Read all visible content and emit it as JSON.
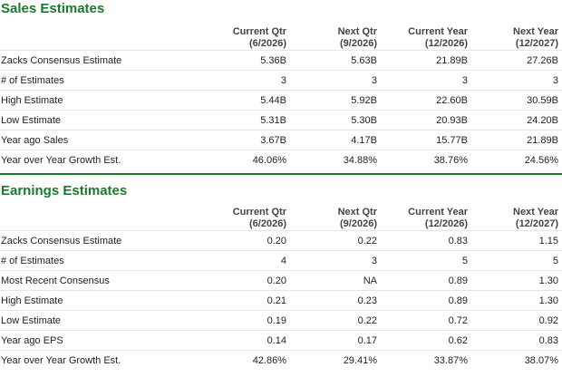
{
  "sales": {
    "title": "Sales Estimates",
    "headers": [
      {
        "line1": "Current Qtr",
        "line2": "(6/2026)"
      },
      {
        "line1": "Next Qtr",
        "line2": "(9/2026)"
      },
      {
        "line1": "Current Year",
        "line2": "(12/2026)"
      },
      {
        "line1": "Next Year",
        "line2": "(12/2027)"
      }
    ],
    "rows": [
      {
        "label": "Zacks Consensus Estimate",
        "values": [
          "5.36B",
          "5.63B",
          "21.89B",
          "27.26B"
        ]
      },
      {
        "label": "# of Estimates",
        "values": [
          "3",
          "3",
          "3",
          "3"
        ]
      },
      {
        "label": "High Estimate",
        "values": [
          "5.44B",
          "5.92B",
          "22.60B",
          "30.59B"
        ]
      },
      {
        "label": "Low Estimate",
        "values": [
          "5.31B",
          "5.30B",
          "20.93B",
          "24.20B"
        ]
      },
      {
        "label": "Year ago Sales",
        "values": [
          "3.67B",
          "4.17B",
          "15.77B",
          "21.89B"
        ]
      },
      {
        "label": "Year over Year Growth Est.",
        "values": [
          "46.06%",
          "34.88%",
          "38.76%",
          "24.56%"
        ]
      }
    ]
  },
  "earnings": {
    "title": "Earnings Estimates",
    "headers": [
      {
        "line1": "Current Qtr",
        "line2": "(6/2026)"
      },
      {
        "line1": "Next Qtr",
        "line2": "(9/2026)"
      },
      {
        "line1": "Current Year",
        "line2": "(12/2026)"
      },
      {
        "line1": "Next Year",
        "line2": "(12/2027)"
      }
    ],
    "rows": [
      {
        "label": "Zacks Consensus Estimate",
        "values": [
          "0.20",
          "0.22",
          "0.83",
          "1.15"
        ]
      },
      {
        "label": "# of Estimates",
        "values": [
          "4",
          "3",
          "5",
          "5"
        ]
      },
      {
        "label": "Most Recent Consensus",
        "values": [
          "0.20",
          "NA",
          "0.89",
          "1.30"
        ]
      },
      {
        "label": "High Estimate",
        "values": [
          "0.21",
          "0.23",
          "0.89",
          "1.30"
        ]
      },
      {
        "label": "Low Estimate",
        "values": [
          "0.19",
          "0.22",
          "0.72",
          "0.92"
        ]
      },
      {
        "label": "Year ago EPS",
        "values": [
          "0.14",
          "0.17",
          "0.62",
          "0.83"
        ]
      },
      {
        "label": "Year over Year Growth Est.",
        "values": [
          "42.86%",
          "29.41%",
          "33.87%",
          "38.07%"
        ]
      }
    ]
  }
}
